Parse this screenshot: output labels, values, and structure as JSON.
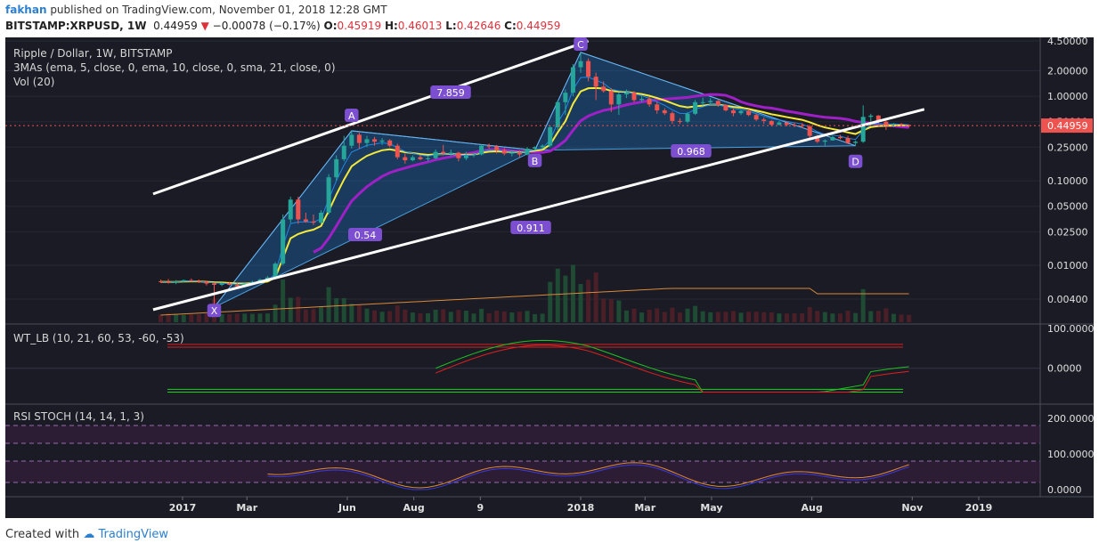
{
  "header": {
    "author": "fakhan",
    "published_text": "published on TradingView.com, November 01, 2018 12:28 GMT",
    "symbol": "BITSTAMP:XRPUSD, 1W",
    "last": "0.44959",
    "change": "−0.00078 (−0.17%)",
    "o_label": "O:",
    "o": "0.45919",
    "h_label": "H:",
    "h": "0.46013",
    "l_label": "L:",
    "l": "0.42646",
    "c_label": "C:",
    "c": "0.44959"
  },
  "legend": {
    "title": "Ripple / Dollar, 1W, BITSTAMP",
    "mas": "3MAs (ema, 5, close, 0, ema, 10, close, 0, sma, 21, close, 0)",
    "vol": "Vol (20)",
    "wt": "WT_LB (10, 21, 60, 53, -60, -53)",
    "rsi": "RSI STOCH (14, 14, 1, 3)"
  },
  "pattern_labels": {
    "X": "X",
    "A": "A",
    "B": "B",
    "C": "C",
    "D": "D",
    "xa_ratio": "0.54",
    "ac_ratio": "7.859",
    "bd_ratio": "0.968",
    "xd_ratio": "0.911"
  },
  "price_axis": {
    "ticks": [
      "4.50000",
      "2.00000",
      "1.00000",
      "0.50000",
      "0.25000",
      "0.10000",
      "0.05000",
      "0.02500",
      "0.01000",
      "0.00400"
    ],
    "current": "0.44959"
  },
  "wt_axis": {
    "ticks": [
      "100.0000",
      "0.0000"
    ]
  },
  "rsi_axis": {
    "ticks": [
      "200.0000",
      "100.0000",
      "0.0000"
    ]
  },
  "time_axis": {
    "ticks": [
      "2017",
      "Mar",
      "Jun",
      "Aug",
      "9",
      "2018",
      "Mar",
      "May",
      "Aug",
      "Nov",
      "2019"
    ]
  },
  "footer": {
    "created": "Created with",
    "brand": "TradingView"
  },
  "colors": {
    "background": "#1a1b24",
    "up": "#26a69a",
    "down": "#ef5350",
    "ema5": "#1e88e5",
    "ema10": "#f5e93a",
    "sma21": "#a020c8",
    "pattern": "#1e78c8",
    "trendline": "#ffffff"
  },
  "chart_data": {
    "type": "candlestick",
    "timeframe": "1W",
    "y_scale": "log",
    "ylim": [
      0.003,
      4.5
    ],
    "candles": [
      {
        "d": "2016-12-12",
        "o": 0.0065,
        "h": 0.0068,
        "l": 0.0062,
        "c": 0.0064
      },
      {
        "d": "2016-12-19",
        "o": 0.0064,
        "h": 0.0069,
        "l": 0.0061,
        "c": 0.0063
      },
      {
        "d": "2016-12-26",
        "o": 0.0063,
        "h": 0.0067,
        "l": 0.006,
        "c": 0.0065
      },
      {
        "d": "2017-01-02",
        "o": 0.0065,
        "h": 0.0068,
        "l": 0.0063,
        "c": 0.0067
      },
      {
        "d": "2017-01-09",
        "o": 0.0067,
        "h": 0.007,
        "l": 0.0064,
        "c": 0.0066
      },
      {
        "d": "2017-01-16",
        "o": 0.0066,
        "h": 0.0068,
        "l": 0.0062,
        "c": 0.0064
      },
      {
        "d": "2017-01-23",
        "o": 0.0064,
        "h": 0.0066,
        "l": 0.0058,
        "c": 0.0061
      },
      {
        "d": "2017-01-30",
        "o": 0.0061,
        "h": 0.0063,
        "l": 0.0032,
        "c": 0.0059
      },
      {
        "d": "2017-02-06",
        "o": 0.0059,
        "h": 0.0063,
        "l": 0.0057,
        "c": 0.0061
      },
      {
        "d": "2017-02-13",
        "o": 0.0061,
        "h": 0.0064,
        "l": 0.0058,
        "c": 0.0059
      },
      {
        "d": "2017-02-20",
        "o": 0.0059,
        "h": 0.0062,
        "l": 0.0055,
        "c": 0.0057
      },
      {
        "d": "2017-02-27",
        "o": 0.0057,
        "h": 0.0062,
        "l": 0.0055,
        "c": 0.0061
      },
      {
        "d": "2017-03-06",
        "o": 0.0061,
        "h": 0.0066,
        "l": 0.0059,
        "c": 0.0064
      },
      {
        "d": "2017-03-13",
        "o": 0.0064,
        "h": 0.007,
        "l": 0.0062,
        "c": 0.0068
      },
      {
        "d": "2017-03-20",
        "o": 0.0068,
        "h": 0.0075,
        "l": 0.0066,
        "c": 0.0072
      },
      {
        "d": "2017-03-27",
        "o": 0.0072,
        "h": 0.011,
        "l": 0.007,
        "c": 0.0105
      },
      {
        "d": "2017-04-03",
        "o": 0.0105,
        "h": 0.04,
        "l": 0.01,
        "c": 0.035
      },
      {
        "d": "2017-04-10",
        "o": 0.035,
        "h": 0.065,
        "l": 0.032,
        "c": 0.06
      },
      {
        "d": "2017-04-17",
        "o": 0.06,
        "h": 0.065,
        "l": 0.031,
        "c": 0.035
      },
      {
        "d": "2017-04-24",
        "o": 0.035,
        "h": 0.042,
        "l": 0.032,
        "c": 0.033
      },
      {
        "d": "2017-05-01",
        "o": 0.033,
        "h": 0.04,
        "l": 0.03,
        "c": 0.032
      },
      {
        "d": "2017-05-08",
        "o": 0.032,
        "h": 0.045,
        "l": 0.031,
        "c": 0.042
      },
      {
        "d": "2017-05-15",
        "o": 0.042,
        "h": 0.12,
        "l": 0.04,
        "c": 0.11
      },
      {
        "d": "2017-05-22",
        "o": 0.11,
        "h": 0.2,
        "l": 0.1,
        "c": 0.18
      },
      {
        "d": "2017-05-29",
        "o": 0.18,
        "h": 0.34,
        "l": 0.17,
        "c": 0.26
      },
      {
        "d": "2017-06-05",
        "o": 0.26,
        "h": 0.39,
        "l": 0.24,
        "c": 0.35
      },
      {
        "d": "2017-06-12",
        "o": 0.35,
        "h": 0.37,
        "l": 0.24,
        "c": 0.28
      },
      {
        "d": "2017-06-19",
        "o": 0.28,
        "h": 0.34,
        "l": 0.25,
        "c": 0.31
      },
      {
        "d": "2017-06-26",
        "o": 0.31,
        "h": 0.33,
        "l": 0.26,
        "c": 0.29
      },
      {
        "d": "2017-07-03",
        "o": 0.29,
        "h": 0.32,
        "l": 0.265,
        "c": 0.3
      },
      {
        "d": "2017-07-10",
        "o": 0.3,
        "h": 0.31,
        "l": 0.25,
        "c": 0.26
      },
      {
        "d": "2017-07-17",
        "o": 0.26,
        "h": 0.275,
        "l": 0.18,
        "c": 0.19
      },
      {
        "d": "2017-07-24",
        "o": 0.19,
        "h": 0.21,
        "l": 0.16,
        "c": 0.175
      },
      {
        "d": "2017-07-31",
        "o": 0.175,
        "h": 0.2,
        "l": 0.17,
        "c": 0.19
      },
      {
        "d": "2017-08-07",
        "o": 0.19,
        "h": 0.2,
        "l": 0.175,
        "c": 0.18
      },
      {
        "d": "2017-08-14",
        "o": 0.18,
        "h": 0.195,
        "l": 0.17,
        "c": 0.185
      },
      {
        "d": "2017-08-21",
        "o": 0.185,
        "h": 0.235,
        "l": 0.18,
        "c": 0.22
      },
      {
        "d": "2017-08-28",
        "o": 0.22,
        "h": 0.265,
        "l": 0.2,
        "c": 0.21
      },
      {
        "d": "2017-09-04",
        "o": 0.21,
        "h": 0.235,
        "l": 0.195,
        "c": 0.215
      },
      {
        "d": "2017-09-11",
        "o": 0.215,
        "h": 0.22,
        "l": 0.17,
        "c": 0.185
      },
      {
        "d": "2017-09-18",
        "o": 0.185,
        "h": 0.22,
        "l": 0.175,
        "c": 0.2
      },
      {
        "d": "2017-09-25",
        "o": 0.2,
        "h": 0.215,
        "l": 0.19,
        "c": 0.205
      },
      {
        "d": "2017-10-02",
        "o": 0.205,
        "h": 0.27,
        "l": 0.2,
        "c": 0.26
      },
      {
        "d": "2017-10-09",
        "o": 0.26,
        "h": 0.275,
        "l": 0.24,
        "c": 0.255
      },
      {
        "d": "2017-10-16",
        "o": 0.255,
        "h": 0.265,
        "l": 0.21,
        "c": 0.23
      },
      {
        "d": "2017-10-23",
        "o": 0.23,
        "h": 0.245,
        "l": 0.2,
        "c": 0.21
      },
      {
        "d": "2017-10-30",
        "o": 0.21,
        "h": 0.23,
        "l": 0.195,
        "c": 0.215
      },
      {
        "d": "2017-11-06",
        "o": 0.215,
        "h": 0.23,
        "l": 0.19,
        "c": 0.205
      },
      {
        "d": "2017-11-13",
        "o": 0.205,
        "h": 0.25,
        "l": 0.2,
        "c": 0.24
      },
      {
        "d": "2017-11-20",
        "o": 0.24,
        "h": 0.255,
        "l": 0.23,
        "c": 0.25
      },
      {
        "d": "2017-11-27",
        "o": 0.25,
        "h": 0.27,
        "l": 0.24,
        "c": 0.26
      },
      {
        "d": "2017-12-04",
        "o": 0.26,
        "h": 0.45,
        "l": 0.25,
        "c": 0.43
      },
      {
        "d": "2017-12-11",
        "o": 0.43,
        "h": 0.9,
        "l": 0.4,
        "c": 0.85
      },
      {
        "d": "2017-12-18",
        "o": 0.85,
        "h": 1.2,
        "l": 0.6,
        "c": 1.1
      },
      {
        "d": "2017-12-25",
        "o": 1.1,
        "h": 2.4,
        "l": 1.0,
        "c": 2.2
      },
      {
        "d": "2018-01-01",
        "o": 2.2,
        "h": 3.3,
        "l": 1.9,
        "c": 2.6
      },
      {
        "d": "2018-01-08",
        "o": 2.6,
        "h": 2.8,
        "l": 1.5,
        "c": 1.7
      },
      {
        "d": "2018-01-15",
        "o": 1.7,
        "h": 1.9,
        "l": 0.9,
        "c": 1.3
      },
      {
        "d": "2018-01-22",
        "o": 1.3,
        "h": 1.5,
        "l": 1.1,
        "c": 1.15
      },
      {
        "d": "2018-01-29",
        "o": 1.15,
        "h": 1.25,
        "l": 0.65,
        "c": 0.8
      },
      {
        "d": "2018-02-05",
        "o": 0.8,
        "h": 1.1,
        "l": 0.6,
        "c": 1.05
      },
      {
        "d": "2018-02-12",
        "o": 1.05,
        "h": 1.2,
        "l": 0.95,
        "c": 1.1
      },
      {
        "d": "2018-02-19",
        "o": 1.1,
        "h": 1.15,
        "l": 0.85,
        "c": 0.9
      },
      {
        "d": "2018-02-26",
        "o": 0.9,
        "h": 1.0,
        "l": 0.85,
        "c": 0.93
      },
      {
        "d": "2018-03-05",
        "o": 0.93,
        "h": 0.98,
        "l": 0.75,
        "c": 0.8
      },
      {
        "d": "2018-03-12",
        "o": 0.8,
        "h": 0.85,
        "l": 0.62,
        "c": 0.68
      },
      {
        "d": "2018-03-19",
        "o": 0.68,
        "h": 0.72,
        "l": 0.6,
        "c": 0.63
      },
      {
        "d": "2018-03-26",
        "o": 0.63,
        "h": 0.66,
        "l": 0.47,
        "c": 0.51
      },
      {
        "d": "2018-04-02",
        "o": 0.51,
        "h": 0.55,
        "l": 0.47,
        "c": 0.5
      },
      {
        "d": "2018-04-09",
        "o": 0.5,
        "h": 0.65,
        "l": 0.48,
        "c": 0.62
      },
      {
        "d": "2018-04-16",
        "o": 0.62,
        "h": 0.9,
        "l": 0.6,
        "c": 0.85
      },
      {
        "d": "2018-04-23",
        "o": 0.85,
        "h": 0.96,
        "l": 0.78,
        "c": 0.85
      },
      {
        "d": "2018-04-30",
        "o": 0.85,
        "h": 0.95,
        "l": 0.8,
        "c": 0.88
      },
      {
        "d": "2018-05-07",
        "o": 0.88,
        "h": 0.9,
        "l": 0.75,
        "c": 0.79
      },
      {
        "d": "2018-05-14",
        "o": 0.79,
        "h": 0.8,
        "l": 0.66,
        "c": 0.68
      },
      {
        "d": "2018-05-21",
        "o": 0.68,
        "h": 0.72,
        "l": 0.58,
        "c": 0.63
      },
      {
        "d": "2018-05-28",
        "o": 0.63,
        "h": 0.7,
        "l": 0.6,
        "c": 0.67
      },
      {
        "d": "2018-06-04",
        "o": 0.67,
        "h": 0.7,
        "l": 0.58,
        "c": 0.6
      },
      {
        "d": "2018-06-11",
        "o": 0.6,
        "h": 0.62,
        "l": 0.51,
        "c": 0.53
      },
      {
        "d": "2018-06-18",
        "o": 0.53,
        "h": 0.56,
        "l": 0.47,
        "c": 0.51
      },
      {
        "d": "2018-06-25",
        "o": 0.51,
        "h": 0.52,
        "l": 0.44,
        "c": 0.46
      },
      {
        "d": "2018-07-02",
        "o": 0.46,
        "h": 0.51,
        "l": 0.45,
        "c": 0.49
      },
      {
        "d": "2018-07-09",
        "o": 0.49,
        "h": 0.5,
        "l": 0.44,
        "c": 0.46
      },
      {
        "d": "2018-07-16",
        "o": 0.46,
        "h": 0.49,
        "l": 0.43,
        "c": 0.45
      },
      {
        "d": "2018-07-23",
        "o": 0.45,
        "h": 0.48,
        "l": 0.42,
        "c": 0.44
      },
      {
        "d": "2018-07-30",
        "o": 0.44,
        "h": 0.46,
        "l": 0.32,
        "c": 0.34
      },
      {
        "d": "2018-08-06",
        "o": 0.34,
        "h": 0.35,
        "l": 0.28,
        "c": 0.29
      },
      {
        "d": "2018-08-13",
        "o": 0.29,
        "h": 0.31,
        "l": 0.26,
        "c": 0.3
      },
      {
        "d": "2018-08-20",
        "o": 0.3,
        "h": 0.34,
        "l": 0.3,
        "c": 0.33
      },
      {
        "d": "2018-08-27",
        "o": 0.33,
        "h": 0.35,
        "l": 0.31,
        "c": 0.32
      },
      {
        "d": "2018-09-03",
        "o": 0.32,
        "h": 0.34,
        "l": 0.27,
        "c": 0.28
      },
      {
        "d": "2018-09-10",
        "o": 0.28,
        "h": 0.3,
        "l": 0.26,
        "c": 0.29
      },
      {
        "d": "2018-09-17",
        "o": 0.29,
        "h": 0.78,
        "l": 0.28,
        "c": 0.57
      },
      {
        "d": "2018-09-24",
        "o": 0.57,
        "h": 0.62,
        "l": 0.5,
        "c": 0.59
      },
      {
        "d": "2018-10-01",
        "o": 0.59,
        "h": 0.6,
        "l": 0.48,
        "c": 0.5
      },
      {
        "d": "2018-10-08",
        "o": 0.5,
        "h": 0.55,
        "l": 0.4,
        "c": 0.46
      },
      {
        "d": "2018-10-15",
        "o": 0.46,
        "h": 0.48,
        "l": 0.43,
        "c": 0.47
      },
      {
        "d": "2018-10-22",
        "o": 0.47,
        "h": 0.48,
        "l": 0.44,
        "c": 0.46
      },
      {
        "d": "2018-10-29",
        "o": 0.4592,
        "h": 0.4601,
        "l": 0.4265,
        "c": 0.4496
      }
    ],
    "harmonic_pattern": {
      "X": {
        "d": "2017-01-30",
        "p": 0.0032
      },
      "A": {
        "d": "2017-06-05",
        "p": 0.39
      },
      "B": {
        "d": "2017-11-20",
        "p": 0.23
      },
      "C": {
        "d": "2018-01-01",
        "p": 3.3
      },
      "D": {
        "d": "2018-09-10",
        "p": 0.26
      }
    },
    "trendlines": [
      {
        "d1": "2016-12-05",
        "p1": 0.07,
        "d2": "2018-01-08",
        "p2": 4.5
      },
      {
        "d1": "2016-12-05",
        "p1": 0.003,
        "d2": "2018-11-12",
        "p2": 0.7
      }
    ]
  }
}
